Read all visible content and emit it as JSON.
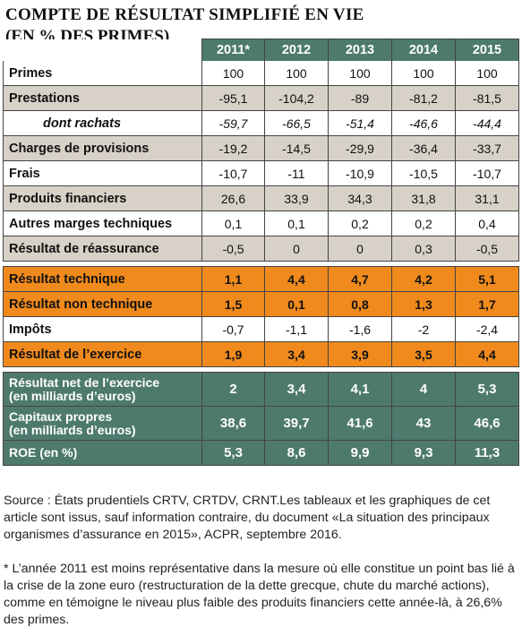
{
  "title": "COMPTE DE RÉSULTAT SIMPLIFIÉ EN VIE",
  "subtitle": "(EN % DES PRIMES)",
  "years": [
    "2011*",
    "2012",
    "2013",
    "2014",
    "2015"
  ],
  "rows_group1": [
    {
      "label": "Primes",
      "values": [
        "100",
        "100",
        "100",
        "100",
        "100"
      ],
      "style": "white"
    },
    {
      "label": "Prestations",
      "values": [
        "-95,1",
        "-104,2",
        "-89",
        "-81,2",
        "-81,5"
      ],
      "style": "grey"
    },
    {
      "label": "dont rachats",
      "values": [
        "-59,7",
        "-66,5",
        "-51,4",
        "-46,6",
        "-44,4"
      ],
      "style": "white italic"
    },
    {
      "label": "Charges de provisions",
      "values": [
        "-19,2",
        "-14,5",
        "-29,9",
        "-36,4",
        "-33,7"
      ],
      "style": "grey"
    },
    {
      "label": "Frais",
      "values": [
        "-10,7",
        "-11",
        "-10,9",
        "-10,5",
        "-10,7"
      ],
      "style": "white"
    },
    {
      "label": "Produits financiers",
      "values": [
        "26,6",
        "33,9",
        "34,3",
        "31,8",
        "31,1"
      ],
      "style": "grey"
    },
    {
      "label": "Autres marges techniques",
      "values": [
        "0,1",
        "0,1",
        "0,2",
        "0,2",
        "0,4"
      ],
      "style": "white"
    },
    {
      "label": "Résultat de réassurance",
      "values": [
        "-0,5",
        "0",
        "0",
        "0,3",
        "-0,5"
      ],
      "style": "grey"
    }
  ],
  "rows_group2": [
    {
      "label": "Résultat technique",
      "values": [
        "1,1",
        "4,4",
        "4,7",
        "4,2",
        "5,1"
      ],
      "style": "orange"
    },
    {
      "label": "Résultat non technique",
      "values": [
        "1,5",
        "0,1",
        "0,8",
        "1,3",
        "1,7"
      ],
      "style": "orange"
    },
    {
      "label": "Impôts",
      "values": [
        "-0,7",
        "-1,1",
        "-1,6",
        "-2",
        "-2,4"
      ],
      "style": "white"
    },
    {
      "label": "Résultat de l’exercice",
      "values": [
        "1,9",
        "3,4",
        "3,9",
        "3,5",
        "4,4"
      ],
      "style": "orange"
    }
  ],
  "rows_group3": [
    {
      "label": "Résultat net de l’exercice\n(en milliards d’euros)",
      "values": [
        "2",
        "3,4",
        "4,1",
        "4",
        "5,3"
      ],
      "style": "green tall"
    },
    {
      "label": "Capitaux propres\n(en milliards d’euros)",
      "values": [
        "38,6",
        "39,7",
        "41,6",
        "43",
        "46,6"
      ],
      "style": "green tall"
    },
    {
      "label": "ROE (en %)",
      "values": [
        "5,3",
        "8,6",
        "9,9",
        "9,3",
        "11,3"
      ],
      "style": "green"
    }
  ],
  "source_text": "Source : États prudentiels CRTV, CRTDV, CRNT.Les tableaux et les graphiques de cet article sont issus, sauf information contraire, du document «La situation des principaux organismes d’assurance en 2015», ACPR, septembre 2016.",
  "footnote_text": "* L’année 2011 est moins représentative dans la mesure où elle constitue un point bas lié à la crise de la zone euro (restructuration de la dette grecque, chute du marché actions), comme en témoigne le niveau plus faible des produits financiers cette année-là, à 26,6% des primes.",
  "colors": {
    "header_green": "#4e7a6e",
    "orange": "#f08a1c",
    "grey": "#d7d1c8"
  }
}
